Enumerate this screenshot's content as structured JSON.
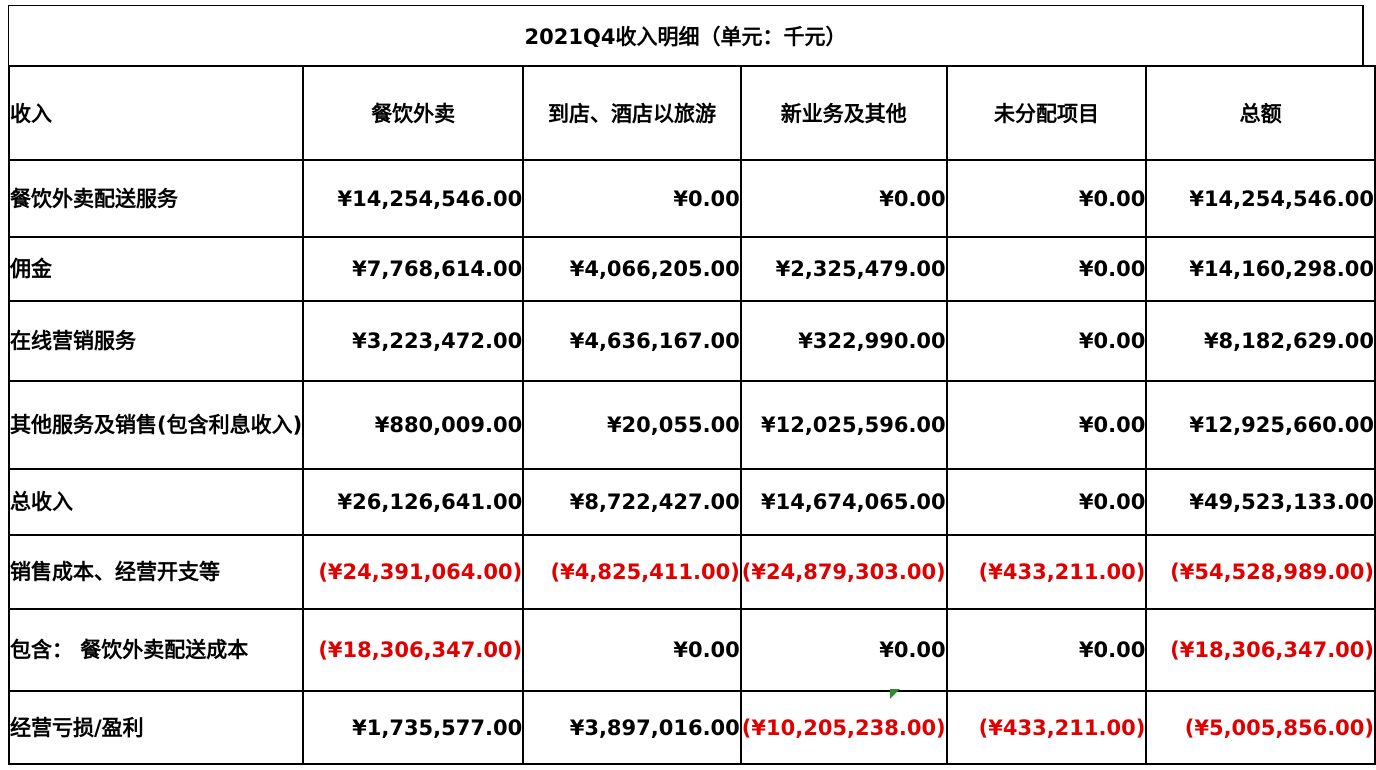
{
  "title": "2021Q4收入明细（单元：千元）",
  "headers": [
    "收入",
    "餐饮外卖",
    "到店、酒店以旅游",
    "新业务及其他",
    "未分配项目",
    "总额"
  ],
  "rows": [
    {
      "label": "餐饮外卖配送服务",
      "values": [
        "¥14,254,546.00",
        "¥0.00",
        "¥0.00",
        "¥0.00",
        "¥14,254,546.00"
      ]
    },
    {
      "label": "佣金",
      "values": [
        "¥7,768,614.00",
        "¥4,066,205.00",
        "¥2,325,479.00",
        "¥0.00",
        "¥14,160,298.00"
      ]
    },
    {
      "label": "在线营销服务",
      "values": [
        "¥3,223,472.00",
        "¥4,636,167.00",
        "¥322,990.00",
        "¥0.00",
        "¥8,182,629.00"
      ]
    },
    {
      "label": "其他服务及销售(包含利息收入)",
      "values": [
        "¥880,009.00",
        "¥20,055.00",
        "¥12,025,596.00",
        "¥0.00",
        "¥12,925,660.00"
      ]
    },
    {
      "label": "总收入",
      "values": [
        "¥26,126,641.00",
        "¥8,722,427.00",
        "¥14,674,065.00",
        "¥0.00",
        "¥49,523,133.00"
      ]
    },
    {
      "label": "销售成本、经营开支等",
      "values": [
        "(¥24,391,064.00)",
        "(¥4,825,411.00)",
        "(¥24,879,303.00)",
        "(¥433,211.00)",
        "(¥54,528,989.00)"
      ]
    },
    {
      "label": "包含： 餐饮外卖配送成本",
      "values": [
        "(¥18,306,347.00)",
        "¥0.00",
        "¥0.00",
        "¥0.00",
        "(¥18,306,347.00)"
      ]
    },
    {
      "label": "经营亏损/盈利",
      "values": [
        "¥1,735,577.00",
        "¥3,897,016.00",
        "(¥10,205,238.00)",
        "(¥433,211.00)",
        "(¥5,005,856.00)"
      ]
    }
  ],
  "colors": {
    "negative": "#e00000",
    "text": "#000000",
    "corner_marker": "#2e8b2e"
  }
}
